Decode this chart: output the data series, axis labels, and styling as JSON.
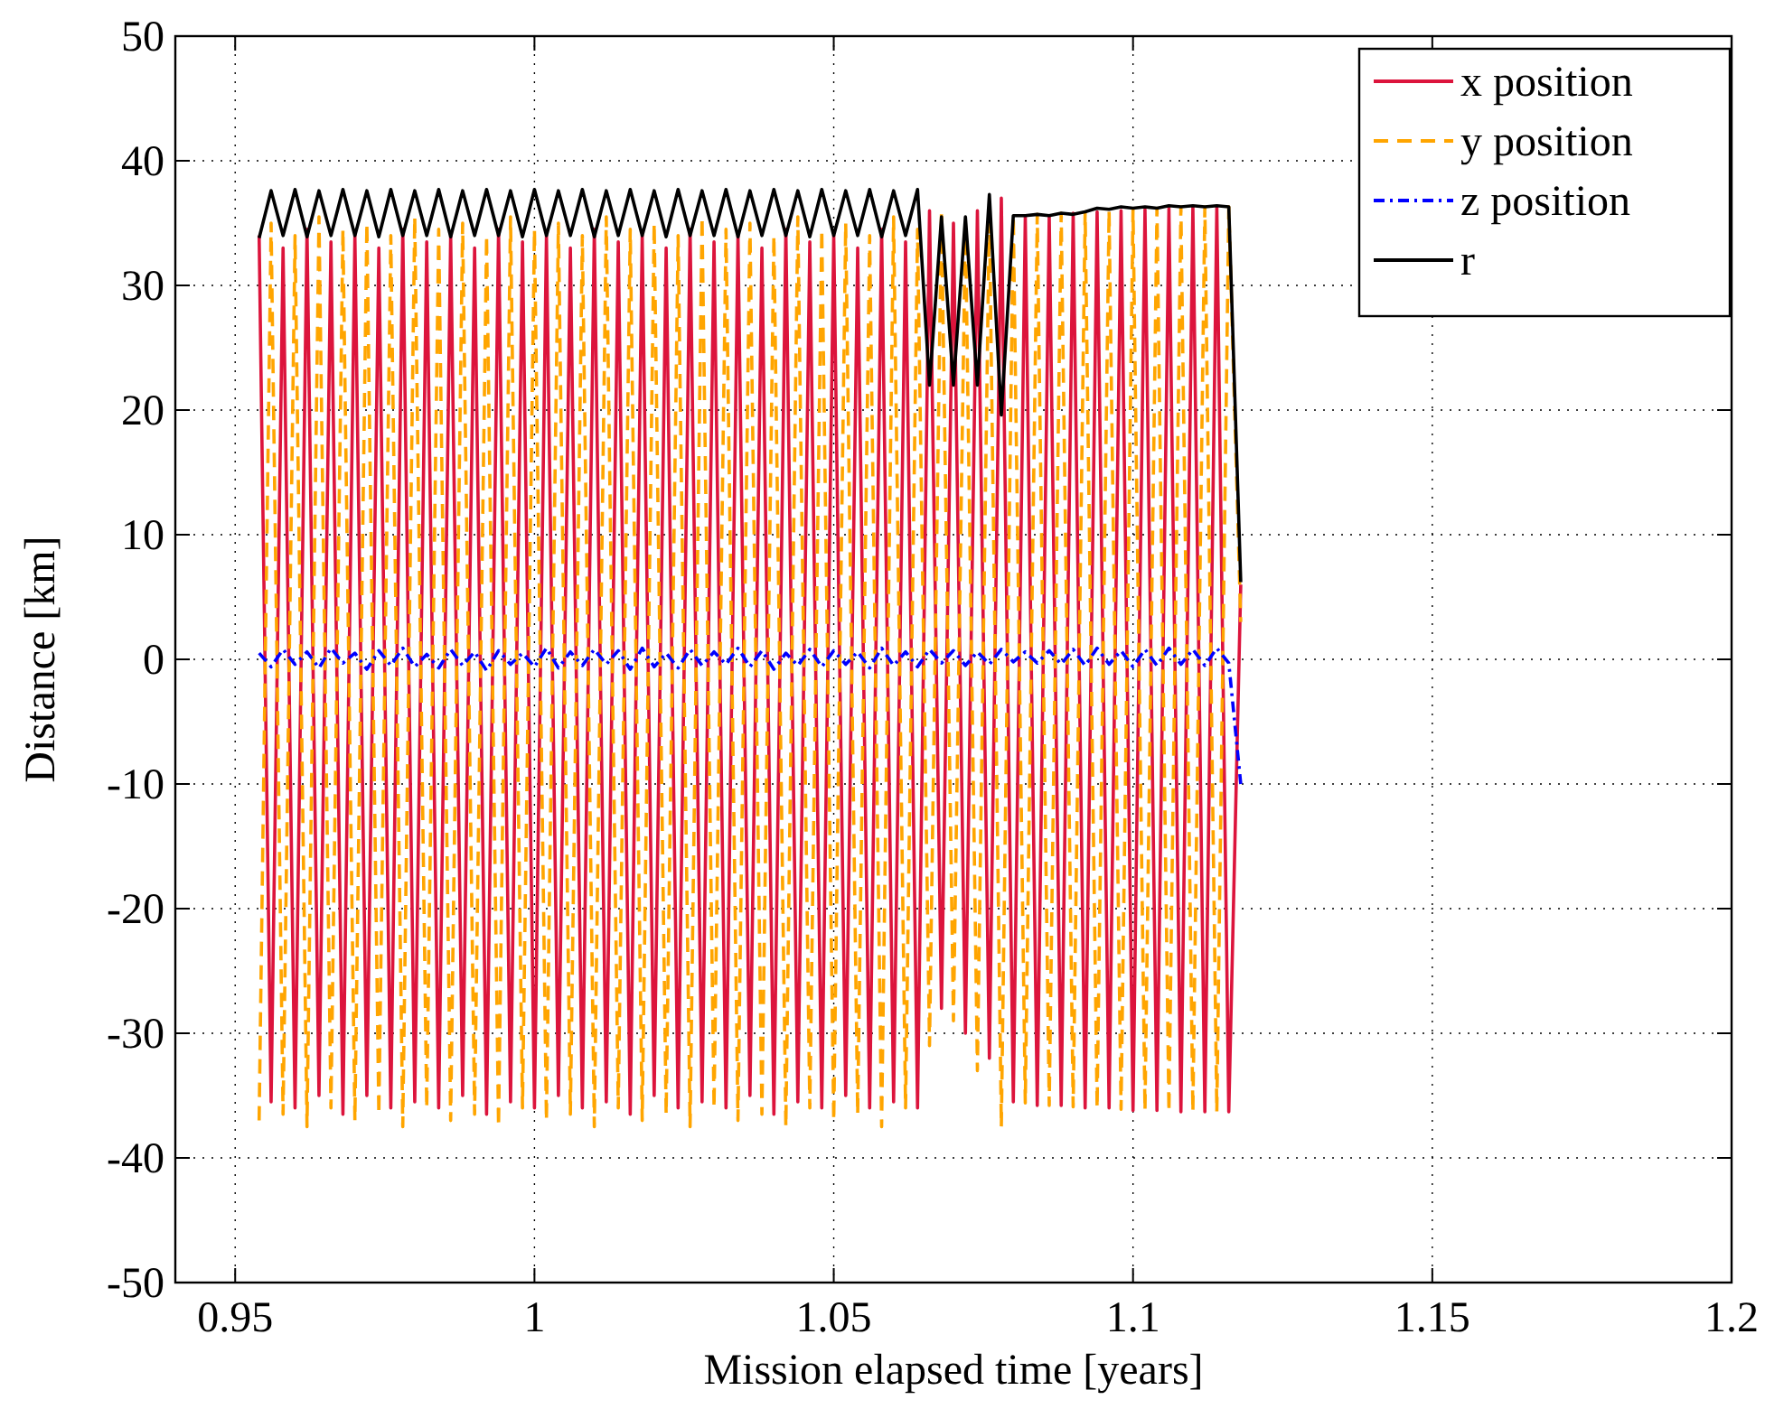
{
  "chart_data": {
    "type": "line",
    "xlabel": "Mission elapsed time [years]",
    "ylabel": "Distance [km]",
    "xlim": [
      0.94,
      1.2
    ],
    "xticks": [
      0.95,
      1,
      1.05,
      1.1,
      1.15,
      1.2
    ],
    "ylim": [
      -50,
      50
    ],
    "yticks": [
      -50,
      -40,
      -30,
      -20,
      -10,
      0,
      10,
      20,
      30,
      40,
      50
    ],
    "grid": true,
    "legend": "top right",
    "x": [
      0.954,
      0.956,
      0.958,
      0.96,
      0.962,
      0.964,
      0.966,
      0.968,
      0.97,
      0.972,
      0.974,
      0.976,
      0.978,
      0.98,
      0.982,
      0.984,
      0.986,
      0.988,
      0.99,
      0.992,
      0.994,
      0.996,
      0.998,
      1.0,
      1.002,
      1.004,
      1.006,
      1.008,
      1.01,
      1.012,
      1.014,
      1.016,
      1.018,
      1.02,
      1.022,
      1.024,
      1.026,
      1.028,
      1.03,
      1.032,
      1.034,
      1.036,
      1.038,
      1.04,
      1.042,
      1.044,
      1.046,
      1.048,
      1.05,
      1.052,
      1.054,
      1.056,
      1.058,
      1.06,
      1.062,
      1.064,
      1.066,
      1.068,
      1.07,
      1.072,
      1.074,
      1.076,
      1.078,
      1.08,
      1.082,
      1.084,
      1.086,
      1.088,
      1.09,
      1.092,
      1.094,
      1.096,
      1.098,
      1.1,
      1.102,
      1.104,
      1.106,
      1.108,
      1.11,
      1.112,
      1.114,
      1.116,
      1.118
    ],
    "series": [
      {
        "name": "x position",
        "color": "#dc143c",
        "line_style": "solid",
        "values": [
          34,
          -35.5,
          33,
          -36,
          34.5,
          -35,
          33.5,
          -36.5,
          34,
          -35,
          33,
          -36,
          34.5,
          -35.5,
          33.5,
          -36,
          34,
          -35,
          33,
          -36.5,
          34.5,
          -35.5,
          33.5,
          -36,
          34,
          -35,
          33,
          -36,
          34.5,
          -35.5,
          33.5,
          -36.5,
          34,
          -35,
          33,
          -36,
          34.5,
          -35.5,
          33.5,
          -36,
          34,
          -35,
          33,
          -36.5,
          34.5,
          -35.5,
          33.5,
          -36,
          34,
          -35,
          33,
          -36,
          34.5,
          -35.5,
          33.5,
          -36,
          36,
          -28,
          35,
          -30,
          36,
          -32,
          37,
          -35.5,
          35.5,
          -35.8,
          35.6,
          -35.8,
          35.8,
          -36,
          35.9,
          -36,
          36,
          -36.2,
          36.1,
          -36.2,
          36.2,
          -36.3,
          36.3,
          -36.3,
          36.3,
          -36.3,
          6
        ]
      },
      {
        "name": "y position",
        "color": "#ffa500",
        "line_style": "dashed",
        "values": [
          -37,
          35,
          -36.5,
          34,
          -37.5,
          35.5,
          -36,
          34.5,
          -37,
          35,
          -36.5,
          34,
          -37.5,
          35.5,
          -36,
          34.5,
          -37,
          35,
          -36.5,
          34,
          -37.5,
          35.5,
          -36,
          34.5,
          -37,
          35,
          -36.5,
          34,
          -37.5,
          35.5,
          -36,
          34.5,
          -37,
          35,
          -36.5,
          34,
          -37.5,
          35.5,
          -36,
          34.5,
          -37,
          35,
          -36.5,
          34,
          -37.5,
          35.5,
          -36,
          34.5,
          -37,
          35,
          -36.5,
          34,
          -37.5,
          35.5,
          -36,
          34.5,
          -31,
          36,
          -29,
          35,
          -33,
          36,
          -37.5,
          35.6,
          -35.6,
          35.7,
          -35.8,
          35.8,
          -35.9,
          35.9,
          -36,
          36,
          -36.1,
          36.1,
          -36.2,
          36.2,
          -36.3,
          36.3,
          -36.3,
          36.3,
          -36.3,
          36.3,
          3
        ]
      },
      {
        "name": "z position",
        "color": "#0000ff",
        "line_style": "dotted",
        "values": [
          0.5,
          -0.6,
          0.8,
          -0.4,
          0.6,
          -0.7,
          0.9,
          -0.3,
          0.5,
          -0.8,
          0.7,
          -0.5,
          0.9,
          -0.6,
          0.4,
          -0.7,
          0.8,
          -0.5,
          0.6,
          -0.9,
          0.7,
          -0.4,
          0.5,
          -0.6,
          0.9,
          -0.7,
          0.6,
          -0.5,
          0.8,
          -0.4,
          0.7,
          -0.8,
          0.9,
          -0.6,
          0.5,
          -0.7,
          0.8,
          -0.5,
          0.6,
          -0.4,
          0.9,
          -0.6,
          0.7,
          -0.8,
          0.5,
          -0.5,
          0.8,
          -0.6,
          0.7,
          -0.4,
          0.6,
          -0.7,
          0.9,
          -0.5,
          0.6,
          -0.6,
          0.8,
          -0.3,
          0.7,
          -0.5,
          0.6,
          -0.4,
          0.8,
          -0.2,
          0.6,
          -0.3,
          0.7,
          -0.4,
          0.8,
          -0.5,
          0.9,
          -0.4,
          0.7,
          -0.6,
          0.8,
          -0.5,
          0.9,
          -0.4,
          0.8,
          -0.5,
          0.9,
          -0.3,
          -10
        ]
      },
      {
        "name": "r",
        "color": "#000000",
        "line_style": "solid",
        "values": [
          33.8,
          37.6,
          34,
          37.7,
          33.9,
          37.6,
          34,
          37.7,
          34,
          37.6,
          33.9,
          37.7,
          34,
          37.6,
          34,
          37.7,
          33.9,
          37.6,
          34,
          37.7,
          34,
          37.6,
          33.9,
          37.7,
          34,
          37.6,
          34,
          37.7,
          33.9,
          37.6,
          34,
          37.7,
          34,
          37.6,
          33.9,
          37.7,
          34,
          37.6,
          34,
          37.7,
          33.9,
          37.6,
          34,
          37.7,
          34,
          37.6,
          33.9,
          37.7,
          34,
          37.6,
          34,
          37.7,
          33.9,
          37.6,
          34,
          37.7,
          22,
          35.5,
          22,
          35.5,
          22,
          37.3,
          19.6,
          35.6,
          35.6,
          35.7,
          35.6,
          35.8,
          35.7,
          35.9,
          36.2,
          36.1,
          36.3,
          36.2,
          36.3,
          36.2,
          36.4,
          36.3,
          36.4,
          36.3,
          36.4,
          36.3,
          6.2
        ]
      }
    ]
  }
}
